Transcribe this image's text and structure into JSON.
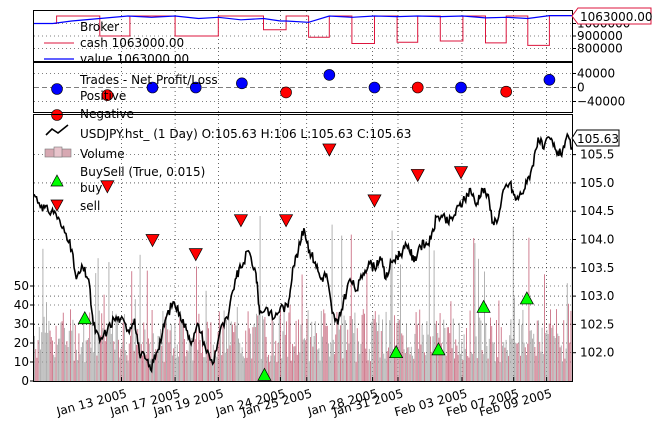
{
  "chart_data": [
    {
      "type": "line",
      "panel": "broker",
      "legend": [
        "Broker",
        "cash 1063000.00",
        "value 1063000.00"
      ],
      "ylim": [
        700000,
        1100000
      ],
      "y_ticks": [
        800000,
        900000,
        1000000
      ],
      "y_tick_labels": [
        "800000",
        "900000",
        "1000000"
      ],
      "last_value_label": "1063000.00",
      "colors": {
        "value": "#0000ff",
        "cash": "#dc143c"
      },
      "cash_steps": [
        [
          0,
          1000000
        ],
        [
          24,
          1000000
        ],
        [
          24,
          1060000
        ],
        [
          70,
          1060000
        ],
        [
          70,
          900000
        ],
        [
          102,
          900000
        ],
        [
          102,
          1060000
        ],
        [
          150,
          1060000
        ],
        [
          150,
          900000
        ],
        [
          196,
          900000
        ],
        [
          196,
          1060000
        ],
        [
          244,
          1060000
        ],
        [
          244,
          950000
        ],
        [
          268,
          950000
        ],
        [
          268,
          1060000
        ],
        [
          292,
          1060000
        ],
        [
          292,
          890000
        ],
        [
          314,
          890000
        ],
        [
          314,
          1060000
        ],
        [
          338,
          1060000
        ],
        [
          338,
          840000
        ],
        [
          362,
          840000
        ],
        [
          362,
          1060000
        ],
        [
          386,
          1060000
        ],
        [
          386,
          850000
        ],
        [
          408,
          850000
        ],
        [
          408,
          1060000
        ],
        [
          432,
          1060000
        ],
        [
          432,
          860000
        ],
        [
          456,
          860000
        ],
        [
          456,
          1060000
        ],
        [
          480,
          1060000
        ],
        [
          480,
          845000
        ],
        [
          502,
          845000
        ],
        [
          502,
          1060000
        ],
        [
          525,
          1060000
        ],
        [
          525,
          825000
        ],
        [
          548,
          825000
        ],
        [
          548,
          1063000
        ],
        [
          572,
          1063000
        ]
      ],
      "value_line": [
        [
          0,
          1000000
        ],
        [
          20,
          1000000
        ],
        [
          40,
          1020000
        ],
        [
          70,
          1040000
        ],
        [
          100,
          1060000
        ],
        [
          125,
          1050000
        ],
        [
          150,
          1060000
        ],
        [
          175,
          1040000
        ],
        [
          196,
          1050000
        ],
        [
          220,
          1030000
        ],
        [
          244,
          1040000
        ],
        [
          262,
          1020000
        ],
        [
          268,
          1020000
        ],
        [
          292,
          1010000
        ],
        [
          314,
          1060000
        ],
        [
          338,
          1050000
        ],
        [
          362,
          1060000
        ],
        [
          386,
          1055000
        ],
        [
          408,
          1060000
        ],
        [
          432,
          1055000
        ],
        [
          456,
          1060000
        ],
        [
          480,
          1045000
        ],
        [
          502,
          1050000
        ],
        [
          525,
          1040000
        ],
        [
          548,
          1063000
        ],
        [
          572,
          1063000
        ]
      ]
    },
    {
      "type": "scatter",
      "panel": "trades",
      "legend": [
        "Trades - Net Profit/Loss",
        "Positive",
        "Negative"
      ],
      "ylim": [
        -70000,
        70000
      ],
      "y_ticks": [
        40000,
        0,
        -40000
      ],
      "y_tick_labels": [
        "40000",
        "0",
        "−40000"
      ],
      "colors": {
        "positive": "#0000ff",
        "negative": "#ff0000"
      },
      "positive": [
        [
          126,
          0
        ],
        [
          172,
          0
        ],
        [
          221,
          12000
        ],
        [
          314,
          36000
        ],
        [
          362,
          0
        ],
        [
          454,
          0
        ],
        [
          548,
          22000
        ]
      ],
      "negative": [
        [
          78,
          -22000
        ],
        [
          268,
          -14000
        ],
        [
          408,
          0
        ],
        [
          502,
          -12000
        ]
      ]
    },
    {
      "type": "line",
      "panel": "price",
      "legend": [
        "USDJPY.hst_ (1 Day) O:105.63 H:106 L:105.63 C:105.63",
        "Volume",
        "BuySell (True, 0.015)",
        "buy",
        "sell"
      ],
      "ylim": [
        101.5,
        106.2
      ],
      "y_ticks": [
        102.0,
        102.5,
        103.0,
        103.5,
        104.0,
        104.5,
        105.0,
        105.5
      ],
      "y_tick_labels": [
        "102.0",
        "102.5",
        "103.0",
        "103.5",
        "104.0",
        "104.5",
        "105.0",
        "105.5"
      ],
      "last_value_label": "105.63",
      "volume_ylim": [
        0,
        140
      ],
      "volume_ticks": [
        0,
        10,
        20,
        30,
        40,
        50
      ],
      "volume_tick_labels": [
        "0",
        "10",
        "20",
        "30",
        "40",
        "50"
      ],
      "x_range": [
        0,
        572
      ],
      "x_ticks": [
        93,
        150,
        196,
        262,
        290,
        360,
        387,
        455,
        510,
        545
      ],
      "x_tick_labels": [
        "Jan 13 2005",
        "Jan 17 2005",
        "Jan 19 2005",
        "Jan 24 2005",
        "Jan 25 2005",
        "Jan 28 2005",
        "Jan 31 2005",
        "Feb 03 2005",
        "Feb 07 2005",
        "Feb 09 2005"
      ],
      "colors": {
        "close": "#000000",
        "volume": "#c0566e",
        "buy": "#00ff00",
        "sell": "#ff0000"
      },
      "close_points": [
        [
          0,
          104.8
        ],
        [
          8,
          104.6
        ],
        [
          15,
          104.5
        ],
        [
          22,
          104.5
        ],
        [
          30,
          104.2
        ],
        [
          38,
          104.0
        ],
        [
          45,
          103.3
        ],
        [
          52,
          103.5
        ],
        [
          58,
          103.3
        ],
        [
          63,
          102.5
        ],
        [
          70,
          102.2
        ],
        [
          78,
          102.4
        ],
        [
          85,
          102.6
        ],
        [
          92,
          102.6
        ],
        [
          100,
          102.4
        ],
        [
          107,
          102.6
        ],
        [
          112,
          102.0
        ],
        [
          118,
          101.9
        ],
        [
          124,
          101.7
        ],
        [
          130,
          102.0
        ],
        [
          136,
          102.3
        ],
        [
          140,
          102.6
        ],
        [
          148,
          102.9
        ],
        [
          155,
          102.7
        ],
        [
          162,
          102.4
        ],
        [
          168,
          102.2
        ],
        [
          175,
          102.5
        ],
        [
          182,
          102.1
        ],
        [
          190,
          101.8
        ],
        [
          198,
          102.4
        ],
        [
          206,
          102.6
        ],
        [
          214,
          103.3
        ],
        [
          220,
          103.5
        ],
        [
          228,
          103.8
        ],
        [
          236,
          103.4
        ],
        [
          240,
          102.7
        ],
        [
          247,
          102.8
        ],
        [
          255,
          102.6
        ],
        [
          262,
          102.8
        ],
        [
          270,
          102.8
        ],
        [
          275,
          103.5
        ],
        [
          281,
          103.8
        ],
        [
          287,
          104.2
        ],
        [
          293,
          103.8
        ],
        [
          299,
          103.6
        ],
        [
          305,
          103.3
        ],
        [
          311,
          103.4
        ],
        [
          317,
          102.7
        ],
        [
          323,
          102.5
        ],
        [
          329,
          102.9
        ],
        [
          336,
          103.3
        ],
        [
          343,
          103.1
        ],
        [
          350,
          103.4
        ],
        [
          356,
          103.6
        ],
        [
          362,
          103.5
        ],
        [
          368,
          103.7
        ],
        [
          374,
          103.3
        ],
        [
          380,
          103.6
        ],
        [
          386,
          103.7
        ],
        [
          392,
          103.8
        ],
        [
          398,
          103.9
        ],
        [
          404,
          103.6
        ],
        [
          410,
          103.9
        ],
        [
          416,
          103.9
        ],
        [
          422,
          104.0
        ],
        [
          428,
          104.4
        ],
        [
          434,
          104.4
        ],
        [
          440,
          104.3
        ],
        [
          446,
          104.4
        ],
        [
          452,
          104.6
        ],
        [
          458,
          104.7
        ],
        [
          464,
          104.9
        ],
        [
          470,
          104.6
        ],
        [
          476,
          104.9
        ],
        [
          482,
          104.8
        ],
        [
          488,
          104.3
        ],
        [
          494,
          104.4
        ],
        [
          500,
          104.9
        ],
        [
          506,
          105.0
        ],
        [
          512,
          104.7
        ],
        [
          518,
          104.8
        ],
        [
          524,
          105.0
        ],
        [
          530,
          105.3
        ],
        [
          536,
          105.8
        ],
        [
          542,
          105.6
        ],
        [
          548,
          105.8
        ],
        [
          554,
          105.6
        ],
        [
          560,
          105.5
        ],
        [
          566,
          105.8
        ],
        [
          572,
          105.63
        ]
      ],
      "buy_markers": [
        [
          54,
          102.6
        ],
        [
          245,
          101.6
        ],
        [
          385,
          102.0
        ],
        [
          430,
          102.05
        ],
        [
          478,
          102.8
        ],
        [
          524,
          102.95
        ]
      ],
      "sell_markers": [
        [
          78,
          104.95
        ],
        [
          126,
          104.0
        ],
        [
          172,
          103.75
        ],
        [
          220,
          104.35
        ],
        [
          268,
          104.35
        ],
        [
          314,
          105.6
        ],
        [
          362,
          104.7
        ],
        [
          408,
          105.15
        ],
        [
          454,
          105.2
        ]
      ]
    }
  ]
}
